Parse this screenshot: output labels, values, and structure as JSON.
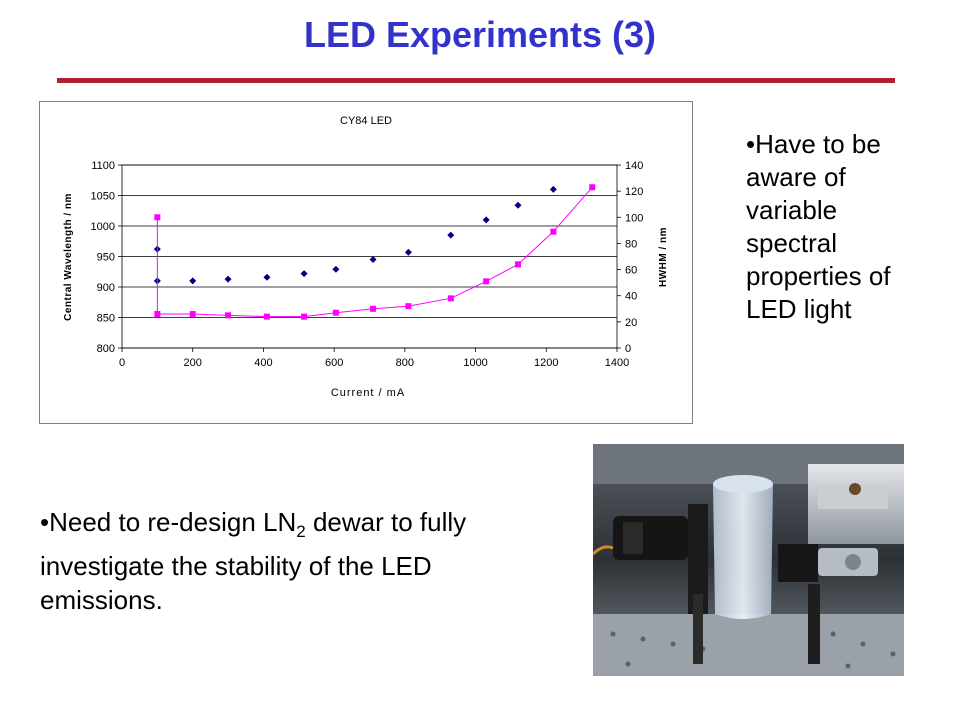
{
  "slide": {
    "title": "LED Experiments (3)",
    "accent_color": "#3333cc",
    "rule_color": "#b0212e"
  },
  "bullets": {
    "right": "•Have to be aware of variable spectral properties of LED light",
    "bottom_prefix": "•Need to re-design LN",
    "bottom_sub": "2",
    "bottom_suffix": " dewar to fully investigate the stability of the LED emissions."
  },
  "photo": {
    "icon": "lab-apparatus-photo"
  },
  "chart_data": {
    "type": "scatter",
    "title": "CY84 LED",
    "xlabel": "Current / mA",
    "ylabel": "Central Wavelength / nm",
    "y2label": "HWHM / nm",
    "xlim": [
      0,
      1400
    ],
    "ylim": [
      800,
      1100
    ],
    "y2lim": [
      0,
      140
    ],
    "xticks": [
      0,
      200,
      400,
      600,
      800,
      1000,
      1200,
      1400
    ],
    "yticks": [
      800,
      850,
      900,
      950,
      1000,
      1050,
      1100
    ],
    "y2ticks": [
      0,
      20,
      40,
      60,
      80,
      100,
      120,
      140
    ],
    "grid": true,
    "series": [
      {
        "axis": "left",
        "marker": "diamond",
        "color": "#000080",
        "x": [
          100,
          100,
          200,
          300,
          410,
          515,
          605,
          710,
          810,
          930,
          1030,
          1120,
          1220
        ],
        "y": [
          962,
          910,
          910,
          913,
          916,
          922,
          929,
          945,
          957,
          985,
          1010,
          1034,
          1060
        ]
      },
      {
        "axis": "right",
        "marker": "square",
        "color": "#ff00ff",
        "line": true,
        "x": [
          100,
          100,
          200,
          300,
          410,
          515,
          605,
          710,
          810,
          930,
          1030,
          1120,
          1220,
          1330
        ],
        "y": [
          100,
          26,
          26,
          25,
          24,
          24,
          27,
          30,
          32,
          38,
          51,
          64,
          89,
          123
        ]
      }
    ]
  }
}
